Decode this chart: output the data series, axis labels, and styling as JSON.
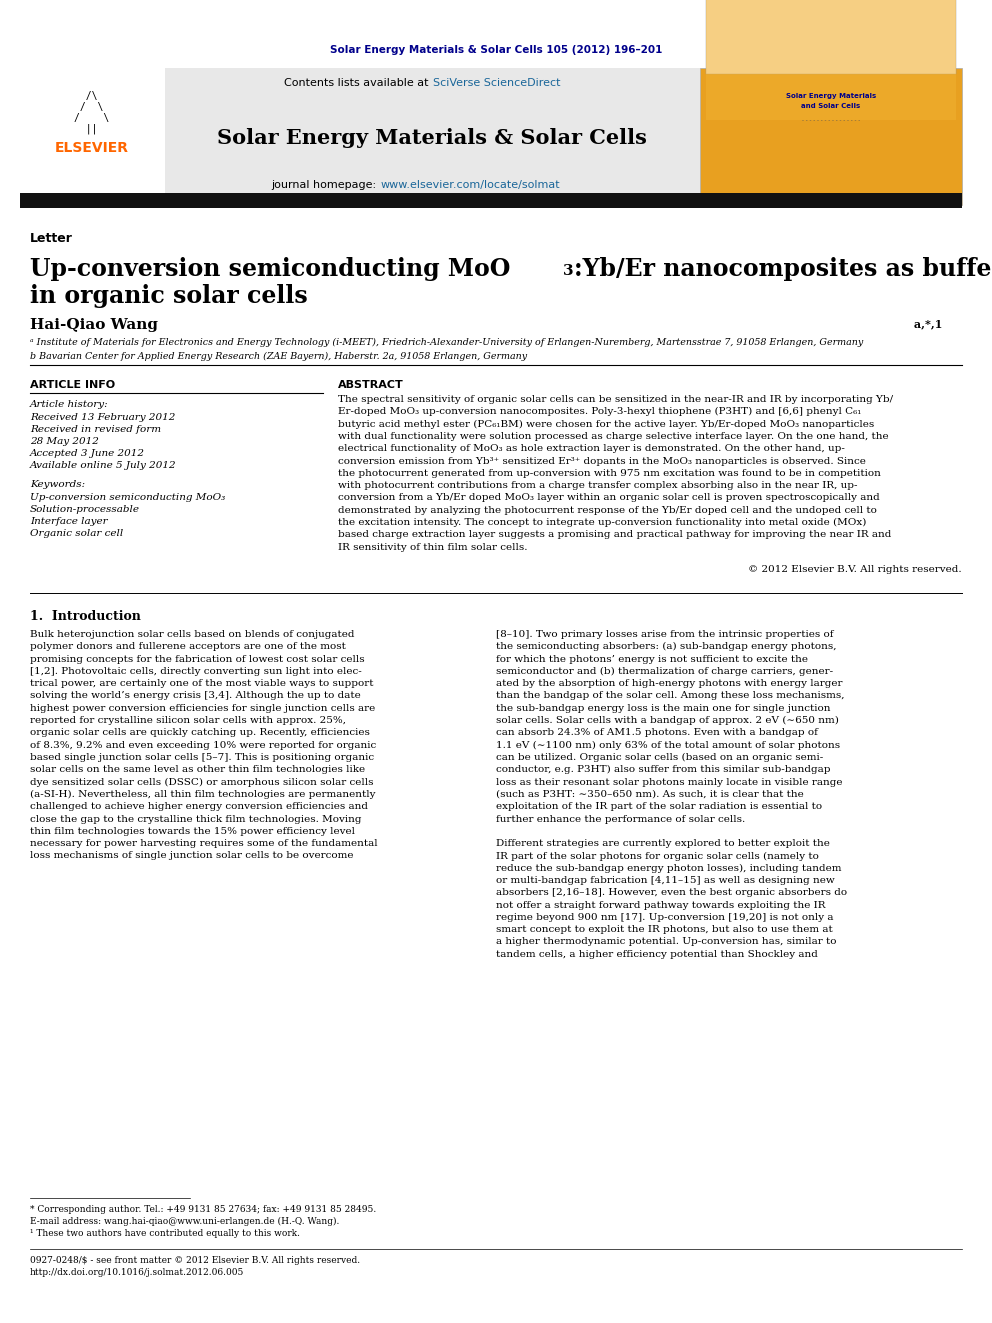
{
  "page_width": 9.92,
  "page_height": 13.23,
  "bg_color": "#ffffff",
  "journal_ref": "Solar Energy Materials & Solar Cells 105 (2012) 196–201",
  "journal_ref_color": "#00008B",
  "header_bg": "#e8e8e8",
  "sciverse_color": "#1a6699",
  "journal_title": "Solar Energy Materials & Solar Cells",
  "homepage_color": "#1a6699",
  "section_label": "Letter",
  "paper_title_line1": "Up-conversion semiconducting MoO",
  "paper_title_sub": "3",
  "paper_title_line1b": ":Yb/Er nanocomposites as buffer layer",
  "paper_title_line2": "in organic solar cells",
  "article_info_header": "ARTICLE INFO",
  "abstract_header": "ABSTRACT",
  "article_history_label": "Article history:",
  "received1": "Received 13 February 2012",
  "received2": "Received in revised form",
  "received2b": "28 May 2012",
  "accepted": "Accepted 3 June 2012",
  "available": "Available online 5 July 2012",
  "keywords_label": "Keywords:",
  "kw1": "Up-conversion semiconducting MoO₃",
  "kw2": "Solution-processable",
  "kw3": "Interface layer",
  "kw4": "Organic solar cell",
  "copyright": "© 2012 Elsevier B.V. All rights reserved.",
  "intro_header": "1.  Introduction",
  "footnote1": "* Corresponding author. Tel.: +49 9131 85 27634; fax: +49 9131 85 28495.",
  "footnote2": "E-mail address: wang.hai-qiao@www.uni-erlangen.de (H.-Q. Wang).",
  "footnote3": "¹ These two authors have contributed equally to this work.",
  "issn_line": "0927-0248/$ - see front matter © 2012 Elsevier B.V. All rights reserved.",
  "doi_line": "http://dx.doi.org/10.1016/j.solmat.2012.06.005",
  "elsevier_color": "#FF6600",
  "dark_bar_color": "#111111",
  "abstract_lines": [
    "The spectral sensitivity of organic solar cells can be sensitized in the near-IR and IR by incorporating Yb/",
    "Er-doped MoO₃ up-conversion nanocomposites. Poly-3-hexyl thiophene (P3HT) and [6,6] phenyl C₆₁",
    "butyric acid methyl ester (PC₆₁BM) were chosen for the active layer. Yb/Er-doped MoO₃ nanoparticles",
    "with dual functionality were solution processed as charge selective interface layer. On the one hand, the",
    "electrical functionality of MoO₃ as hole extraction layer is demonstrated. On the other hand, up-",
    "conversion emission from Yb³⁺ sensitized Er³⁺ dopants in the MoO₃ nanoparticles is observed. Since",
    "the photocurrent generated from up-conversion with 975 nm excitation was found to be in competition",
    "with photocurrent contributions from a charge transfer complex absorbing also in the near IR, up-",
    "conversion from a Yb/Er doped MoO₃ layer within an organic solar cell is proven spectroscopically and",
    "demonstrated by analyzing the photocurrent response of the Yb/Er doped cell and the undoped cell to",
    "the excitation intensity. The concept to integrate up-conversion functionality into metal oxide (MOx)",
    "based charge extraction layer suggests a promising and practical pathway for improving the near IR and",
    "IR sensitivity of thin film solar cells."
  ],
  "intro_col1_lines": [
    "Bulk heterojunction solar cells based on blends of conjugated",
    "polymer donors and fullerene acceptors are one of the most",
    "promising concepts for the fabrication of lowest cost solar cells",
    "[1,2]. Photovoltaic cells, directly converting sun light into elec-",
    "trical power, are certainly one of the most viable ways to support",
    "solving the world’s energy crisis [3,4]. Although the up to date",
    "highest power conversion efficiencies for single junction cells are",
    "reported for crystalline silicon solar cells with approx. 25%,",
    "organic solar cells are quickly catching up. Recently, efficiencies",
    "of 8.3%, 9.2% and even exceeding 10% were reported for organic",
    "based single junction solar cells [5–7]. This is positioning organic",
    "solar cells on the same level as other thin film technologies like",
    "dye sensitized solar cells (DSSC) or amorphous silicon solar cells",
    "(a-SI-H). Nevertheless, all thin film technologies are permanently",
    "challenged to achieve higher energy conversion efficiencies and",
    "close the gap to the crystalline thick film technologies. Moving",
    "thin film technologies towards the 15% power efficiency level",
    "necessary for power harvesting requires some of the fundamental",
    "loss mechanisms of single junction solar cells to be overcome"
  ],
  "intro_col2_lines": [
    "[8–10]. Two primary losses arise from the intrinsic properties of",
    "the semiconducting absorbers: (a) sub-bandgap energy photons,",
    "for which the photons’ energy is not sufficient to excite the",
    "semiconductor and (b) thermalization of charge carriers, gener-",
    "ated by the absorption of high-energy photons with energy larger",
    "than the bandgap of the solar cell. Among these loss mechanisms,",
    "the sub-bandgap energy loss is the main one for single junction",
    "solar cells. Solar cells with a bandgap of approx. 2 eV (∼650 nm)",
    "can absorb 24.3% of AM1.5 photons. Even with a bandgap of",
    "1.1 eV (∼1100 nm) only 63% of the total amount of solar photons",
    "can be utilized. Organic solar cells (based on an organic semi-",
    "conductor, e.g. P3HT) also suffer from this similar sub-bandgap",
    "loss as their resonant solar photons mainly locate in visible range",
    "(such as P3HT: ∼350–650 nm). As such, it is clear that the",
    "exploitation of the IR part of the solar radiation is essential to",
    "further enhance the performance of solar cells.",
    "",
    "Different strategies are currently explored to better exploit the",
    "IR part of the solar photons for organic solar cells (namely to",
    "reduce the sub-bandgap energy photon losses), including tandem",
    "or multi-bandgap fabrication [4,11–15] as well as designing new",
    "absorbers [2,16–18]. However, even the best organic absorbers do",
    "not offer a straight forward pathway towards exploiting the IR",
    "regime beyond 900 nm [17]. Up-conversion [19,20] is not only a",
    "smart concept to exploit the IR photons, but also to use them at",
    "a higher thermodynamic potential. Up-conversion has, similar to",
    "tandem cells, a higher efficiency potential than Shockley and"
  ]
}
